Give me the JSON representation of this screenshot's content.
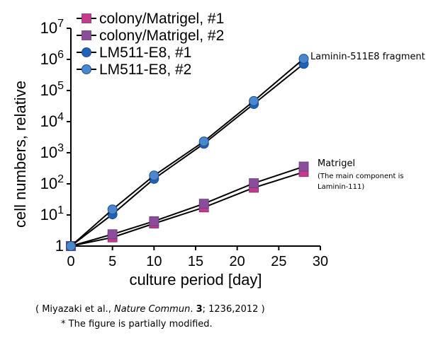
{
  "chart_data": {
    "type": "line",
    "xlabel": "culture period [day]",
    "ylabel": "cell numbers, relative",
    "xlim": [
      0,
      30
    ],
    "ylim": [
      1,
      10000000
    ],
    "yscale": "log",
    "x_ticks": [
      "0",
      "5",
      "10",
      "15",
      "20",
      "25",
      "30"
    ],
    "y_ticks": [
      {
        "base": "1",
        "exp": ""
      },
      {
        "base": "10",
        "exp": "1"
      },
      {
        "base": "10",
        "exp": "2"
      },
      {
        "base": "10",
        "exp": "3"
      },
      {
        "base": "10",
        "exp": "4"
      },
      {
        "base": "10",
        "exp": "5"
      },
      {
        "base": "10",
        "exp": "6"
      },
      {
        "base": "10",
        "exp": "7"
      }
    ],
    "legend_position": "top-left",
    "series": [
      {
        "name": "colony/Matrigel, #1",
        "marker": "square",
        "color": "#c8388c",
        "x": [
          0,
          5,
          10,
          16,
          22,
          28
        ],
        "y": [
          1,
          1.9,
          5.3,
          17.5,
          75,
          240
        ]
      },
      {
        "name": "colony/Matrigel, #2",
        "marker": "square",
        "color": "#8a4d9c",
        "x": [
          0,
          5,
          10,
          16,
          22,
          28
        ],
        "y": [
          1,
          2.4,
          6.3,
          23,
          105,
          360
        ]
      },
      {
        "name": "LM511-E8, #1",
        "marker": "circle",
        "color": "#1f63b8",
        "x": [
          0,
          5,
          10,
          16,
          22,
          28
        ],
        "y": [
          1,
          10.5,
          145,
          1950,
          37000,
          720000
        ]
      },
      {
        "name": "LM511-E8, #2",
        "marker": "circle",
        "color": "#4a87cc",
        "x": [
          0,
          5,
          10,
          16,
          22,
          28
        ],
        "y": [
          1,
          15,
          185,
          2300,
          46000,
          1050000
        ]
      }
    ]
  },
  "annotations": {
    "laminin_label": "Laminin-511E8 fragment",
    "matrigel_label": "Matrigel",
    "matrigel_note_1": "(The main component is",
    "matrigel_note_2": "Laminin-111)"
  },
  "citation": {
    "prefix": "( Miyazaki et al., ",
    "journal": "Nature Commun",
    "sep": ". ",
    "volume": "3",
    "suffix": "; 1236,2012 )"
  },
  "footnote": "* The figure is partially modified."
}
